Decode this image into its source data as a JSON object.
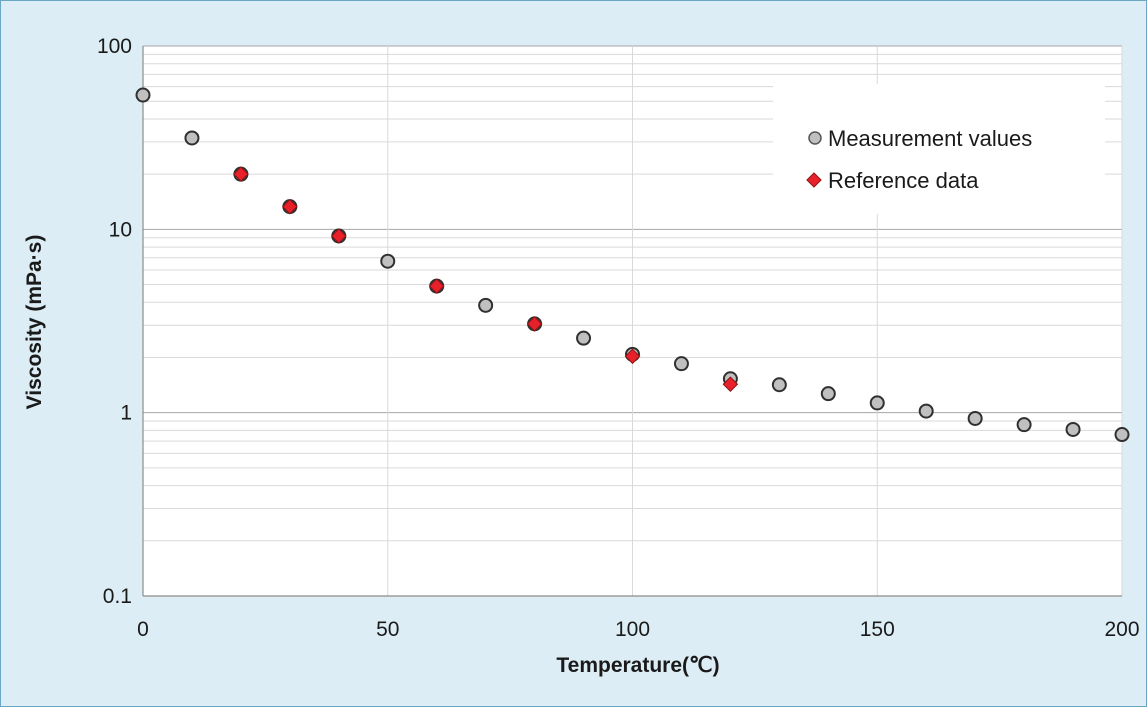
{
  "chart_data": {
    "type": "scatter",
    "title": "",
    "xlabel": "Temperature(℃)",
    "ylabel": "Viscosity (mPa·s)",
    "xlim": [
      0,
      200
    ],
    "ylim": [
      0.1,
      100
    ],
    "yscale": "log",
    "x_ticks": [
      "0",
      "50",
      "100",
      "150",
      "200"
    ],
    "x_tick_values": [
      0,
      50,
      100,
      150,
      200
    ],
    "y_ticks": [
      "0.1",
      "1",
      "10",
      "100"
    ],
    "y_tick_values": [
      0.1,
      1,
      10,
      100
    ],
    "grid": true,
    "legend_position": "top-right",
    "series": [
      {
        "name": "Measurement values",
        "marker": "circle",
        "color": "#c0c0c0",
        "x": [
          0,
          10,
          20,
          30,
          40,
          50,
          60,
          70,
          80,
          90,
          100,
          110,
          120,
          130,
          140,
          150,
          160,
          170,
          180,
          190,
          200
        ],
        "y": [
          54,
          31.5,
          20,
          13.3,
          9.2,
          6.7,
          4.9,
          3.85,
          3.05,
          2.55,
          2.08,
          1.85,
          1.53,
          1.42,
          1.27,
          1.13,
          1.02,
          0.93,
          0.86,
          0.81,
          0.76
        ]
      },
      {
        "name": "Reference data",
        "marker": "diamond",
        "color": "#e8202a",
        "x": [
          20,
          30,
          40,
          60,
          80,
          100,
          120
        ],
        "y": [
          20,
          13.3,
          9.2,
          4.9,
          3.05,
          2.03,
          1.43
        ]
      }
    ]
  }
}
